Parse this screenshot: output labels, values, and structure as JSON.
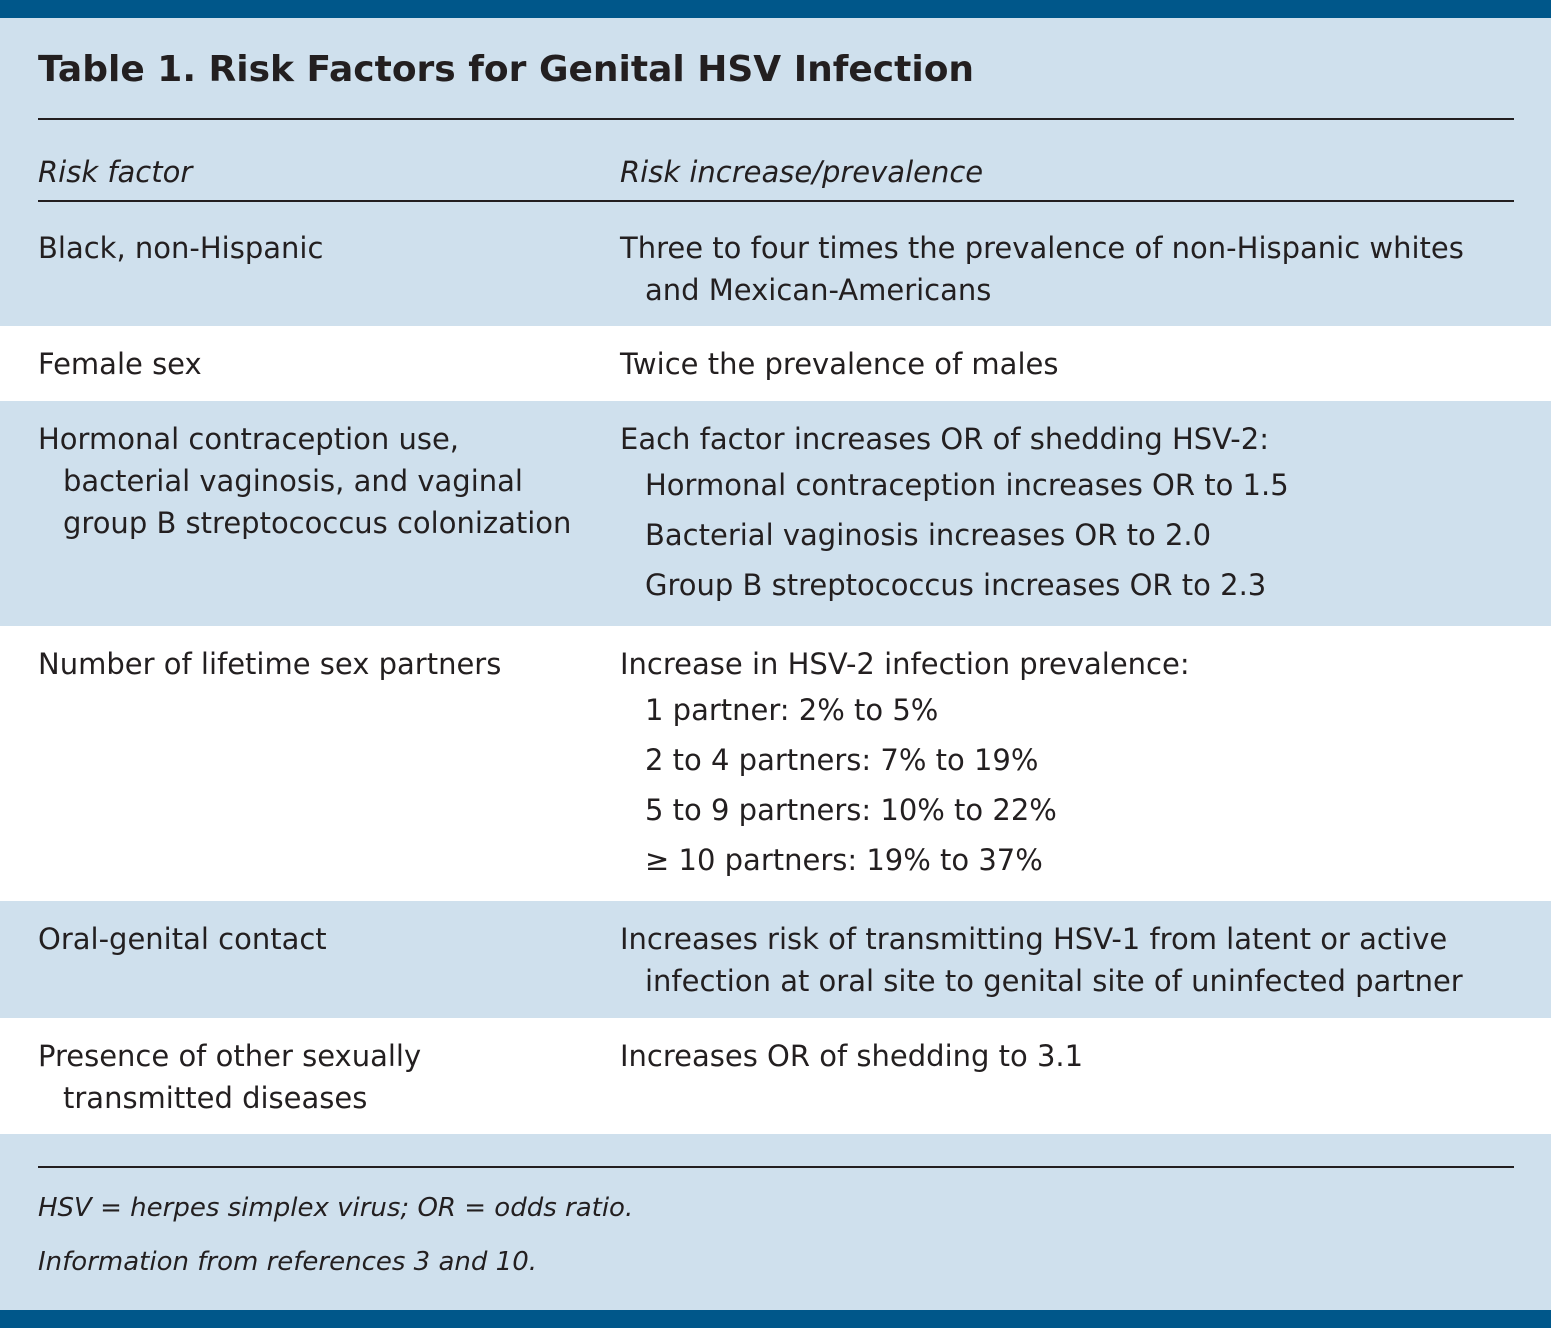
{
  "table": {
    "title": "Table 1. Risk Factors for Genital HSV Infection",
    "col_headers": [
      "Risk factor",
      "Risk increase/prevalence"
    ],
    "rows": [
      {
        "factor_lines": [
          "Black, non-Hispanic"
        ],
        "desc_lines": [
          "Three to four times the prevalence of non-Hispanic whites",
          "and Mexican-Americans"
        ]
      },
      {
        "factor_lines": [
          "Female sex"
        ],
        "desc_lines": [
          "Twice the prevalence of males"
        ]
      },
      {
        "factor_lines": [
          "Hormonal contraception use,",
          "bacterial vaginosis, and vaginal",
          "group B streptococcus colonization"
        ],
        "desc_intro": "Each factor increases OR of shedding HSV-2:",
        "desc_items": [
          "Hormonal contraception increases OR to 1.5",
          "Bacterial vaginosis increases OR to 2.0",
          "Group B streptococcus increases OR to 2.3"
        ]
      },
      {
        "factor_lines": [
          "Number of lifetime sex partners"
        ],
        "desc_intro": "Increase in HSV-2 infection prevalence:",
        "desc_items": [
          "1 partner: 2% to 5%",
          "2 to 4 partners: 7% to 19%",
          "5 to 9 partners: 10% to 22%",
          "≥ 10 partners: 19% to 37%"
        ]
      },
      {
        "factor_lines": [
          "Oral-genital contact"
        ],
        "desc_lines": [
          "Increases risk of transmitting HSV-1 from latent or active",
          "infection at oral site to genital site of uninfected partner"
        ]
      },
      {
        "factor_lines": [
          "Presence of other sexually",
          "transmitted diseases"
        ],
        "desc_lines": [
          "Increases OR of shedding to 3.1"
        ]
      }
    ],
    "footnotes": [
      "HSV = herpes simplex virus; OR = odds ratio.",
      "Information from references 3 and 10."
    ]
  }
}
